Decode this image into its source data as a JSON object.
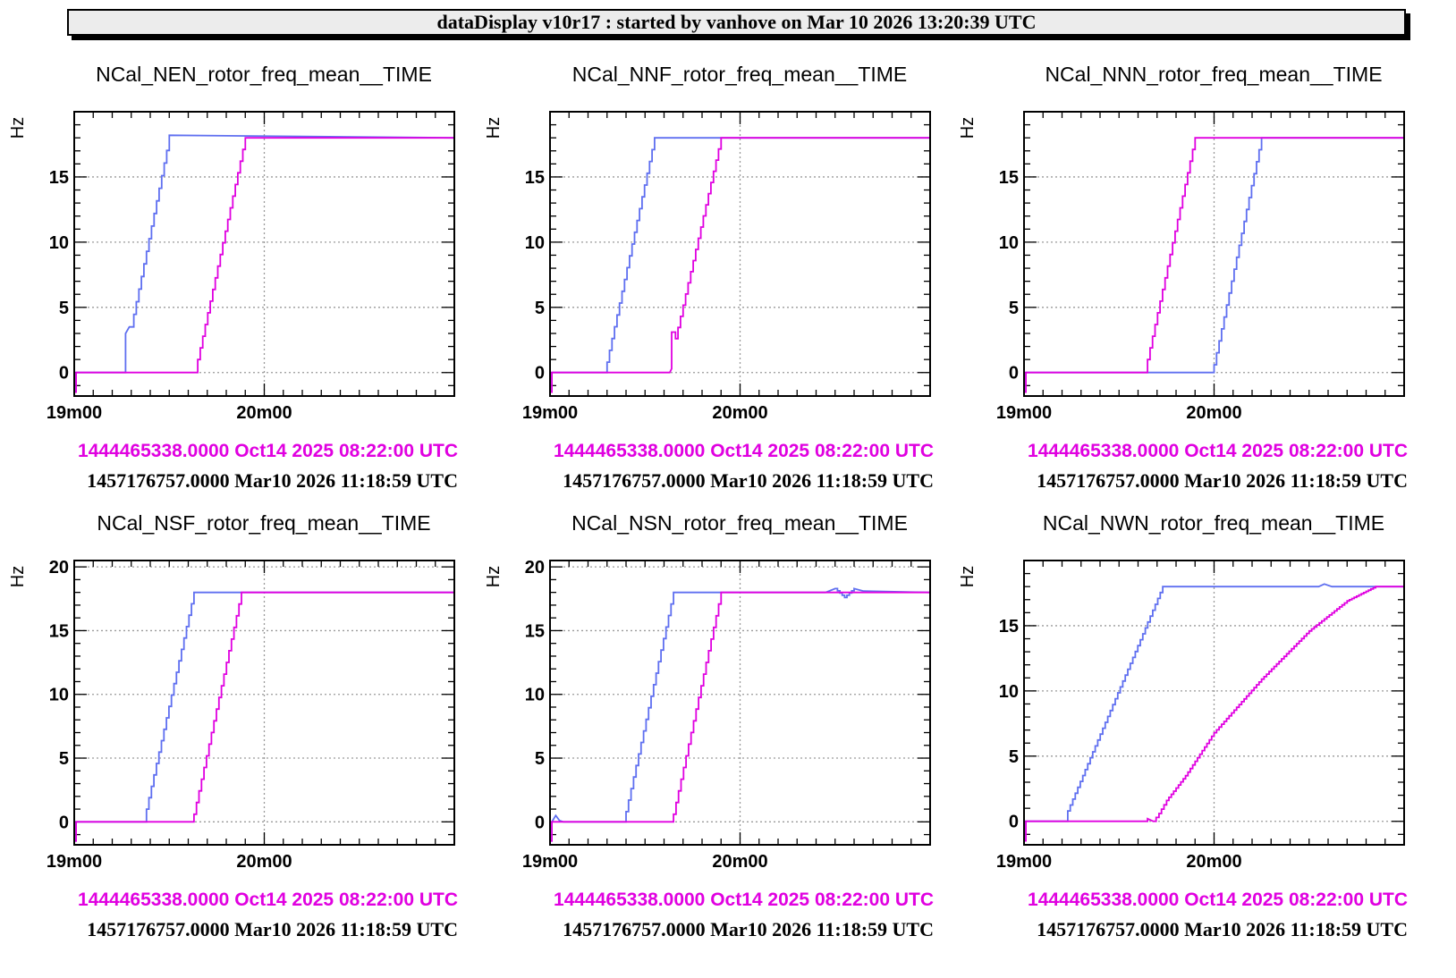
{
  "header": {
    "title": "dataDisplay v10r17 : started by vanhove on Mar 10 2026 13:20:39 UTC"
  },
  "colors": {
    "series_blue": "#5f6ff0",
    "series_magenta": "#e000e0",
    "grid": "#9a9a9a",
    "stamp_magenta": "#e000e0"
  },
  "chart_data": [
    {
      "type": "line",
      "title": "NCal_NEN_rotor_freq_mean__TIME",
      "ylabel": "Hz",
      "xticks": [
        "19m00",
        "20m00"
      ],
      "yticks": [
        0,
        5,
        10,
        15
      ],
      "xlim": [
        0,
        2.0
      ],
      "ylim": [
        -1.8,
        20
      ],
      "grid": true,
      "stamps": [
        "1444465338.0000 Oct14 2025 08:22:00 UTC",
        "1457176757.0000 Mar10 2026 11:18:59 UTC"
      ],
      "series": [
        {
          "color": "blue",
          "x": [
            0.0,
            0.01,
            0.01,
            0.27,
            0.27,
            0.29,
            0.3,
            0.5,
            0.5,
            2.0
          ],
          "y": [
            -1.5,
            -1.5,
            0,
            0,
            3.0,
            3.5,
            3.5,
            18.0,
            18.2,
            18.0
          ]
        },
        {
          "color": "magenta",
          "x": [
            0.0,
            0.01,
            0.01,
            0.65,
            0.65,
            0.9,
            2.0
          ],
          "y": [
            -1.5,
            -1.5,
            0,
            0,
            1.0,
            18.0,
            18.0
          ]
        }
      ]
    },
    {
      "type": "line",
      "title": "NCal_NNF_rotor_freq_mean__TIME",
      "ylabel": "Hz",
      "xticks": [
        "19m00",
        "20m00"
      ],
      "yticks": [
        0,
        5,
        10,
        15
      ],
      "xlim": [
        0,
        2.0
      ],
      "ylim": [
        -1.8,
        20
      ],
      "grid": true,
      "stamps": [
        "1444465338.0000 Oct14 2025 08:22:00 UTC",
        "1457176757.0000 Mar10 2026 11:18:59 UTC"
      ],
      "series": [
        {
          "color": "blue",
          "x": [
            0.0,
            0.01,
            0.01,
            0.3,
            0.3,
            0.55,
            2.0
          ],
          "y": [
            -1.5,
            -1.5,
            0,
            0,
            0.8,
            18.0,
            18.0
          ]
        },
        {
          "color": "magenta",
          "x": [
            0.0,
            0.01,
            0.01,
            0.63,
            0.64,
            0.64,
            0.66,
            0.66,
            0.9,
            2.0
          ],
          "y": [
            -1.5,
            -1.5,
            0,
            0,
            0.3,
            3.1,
            3.1,
            2.6,
            18.0,
            18.0
          ]
        }
      ]
    },
    {
      "type": "line",
      "title": "NCal_NNN_rotor_freq_mean__TIME",
      "ylabel": "Hz",
      "xticks": [
        "19m00",
        "20m00"
      ],
      "yticks": [
        0,
        5,
        10,
        15
      ],
      "xlim": [
        0,
        2.0
      ],
      "ylim": [
        -1.8,
        20
      ],
      "grid": true,
      "stamps": [
        "1444465338.0000 Oct14 2025 08:22:00 UTC",
        "1457176757.0000 Mar10 2026 11:18:59 UTC"
      ],
      "series": [
        {
          "color": "blue",
          "x": [
            0.0,
            0.01,
            0.01,
            1.0,
            1.0,
            1.25,
            2.0
          ],
          "y": [
            -1.5,
            -1.5,
            0,
            0,
            0.6,
            18.0,
            18.0
          ]
        },
        {
          "color": "magenta",
          "x": [
            0.0,
            0.01,
            0.01,
            0.65,
            0.65,
            0.9,
            2.0
          ],
          "y": [
            -1.5,
            -1.5,
            0,
            0,
            1.0,
            18.0,
            18.0
          ]
        }
      ]
    },
    {
      "type": "line",
      "title": "NCal_NSF_rotor_freq_mean__TIME",
      "ylabel": "Hz",
      "xticks": [
        "19m00",
        "20m00"
      ],
      "yticks": [
        0,
        5,
        10,
        15,
        20
      ],
      "xlim": [
        0,
        2.0
      ],
      "ylim": [
        -1.8,
        20.5
      ],
      "grid": true,
      "stamps": [
        "1444465338.0000 Oct14 2025 08:22:00 UTC",
        "1457176757.0000 Mar10 2026 11:18:59 UTC"
      ],
      "series": [
        {
          "color": "blue",
          "x": [
            0.0,
            0.01,
            0.01,
            0.38,
            0.38,
            0.63,
            2.0
          ],
          "y": [
            -1.5,
            -1.5,
            0,
            0,
            1.0,
            18.0,
            18.0
          ]
        },
        {
          "color": "magenta",
          "x": [
            0.0,
            0.01,
            0.01,
            0.63,
            0.63,
            0.88,
            2.0
          ],
          "y": [
            -1.5,
            -1.5,
            0,
            0,
            0.6,
            18.0,
            18.0
          ]
        }
      ]
    },
    {
      "type": "line",
      "title": "NCal_NSN_rotor_freq_mean__TIME",
      "ylabel": "Hz",
      "xticks": [
        "19m00",
        "20m00"
      ],
      "yticks": [
        0,
        5,
        10,
        15,
        20
      ],
      "xlim": [
        0,
        2.0
      ],
      "ylim": [
        -1.8,
        20.5
      ],
      "grid": true,
      "stamps": [
        "1444465338.0000 Oct14 2025 08:22:00 UTC",
        "1457176757.0000 Mar10 2026 11:18:59 UTC"
      ],
      "series": [
        {
          "color": "blue",
          "x": [
            0.0,
            0.01,
            0.01,
            0.03,
            0.05,
            0.07,
            0.4,
            0.4,
            0.65,
            1.45,
            1.5,
            1.55,
            1.6,
            1.65,
            2.0
          ],
          "y": [
            -1.5,
            -1.5,
            0,
            0.5,
            0.1,
            0,
            0,
            0.8,
            18.0,
            18.0,
            18.3,
            17.6,
            18.3,
            18.1,
            18.0
          ]
        },
        {
          "color": "magenta",
          "x": [
            0.0,
            0.01,
            0.01,
            0.65,
            0.65,
            0.9,
            2.0
          ],
          "y": [
            -1.5,
            -1.5,
            0,
            0,
            0.6,
            18.0,
            18.0
          ]
        }
      ]
    },
    {
      "type": "line",
      "title": "NCal_NWN_rotor_freq_mean__TIME",
      "ylabel": "Hz",
      "xticks": [
        "19m00",
        "20m00"
      ],
      "yticks": [
        0,
        5,
        10,
        15
      ],
      "xlim": [
        0,
        2.0
      ],
      "ylim": [
        -1.8,
        20
      ],
      "grid": true,
      "stamps": [
        "1444465338.0000 Oct14 2025 08:22:00 UTC",
        "1457176757.0000 Mar10 2026 11:18:59 UTC"
      ],
      "series": [
        {
          "color": "blue",
          "x": [
            0.0,
            0.01,
            0.01,
            0.23,
            0.23,
            0.73,
            1.55,
            1.58,
            1.62,
            2.0
          ],
          "y": [
            -1.5,
            -1.5,
            0,
            0,
            0.8,
            18.0,
            18.0,
            18.2,
            18.0,
            18.0
          ]
        },
        {
          "color": "magenta",
          "x": [
            0.0,
            0.01,
            0.01,
            0.65,
            0.65,
            0.68,
            0.71,
            0.75,
            0.85,
            1.0,
            1.25,
            1.5,
            1.7,
            1.85,
            2.0
          ],
          "y": [
            -1.5,
            -1.5,
            0,
            0,
            0.2,
            0,
            0.6,
            1.6,
            3.5,
            6.8,
            10.9,
            14.6,
            16.9,
            18.0,
            18.0
          ]
        }
      ]
    }
  ]
}
